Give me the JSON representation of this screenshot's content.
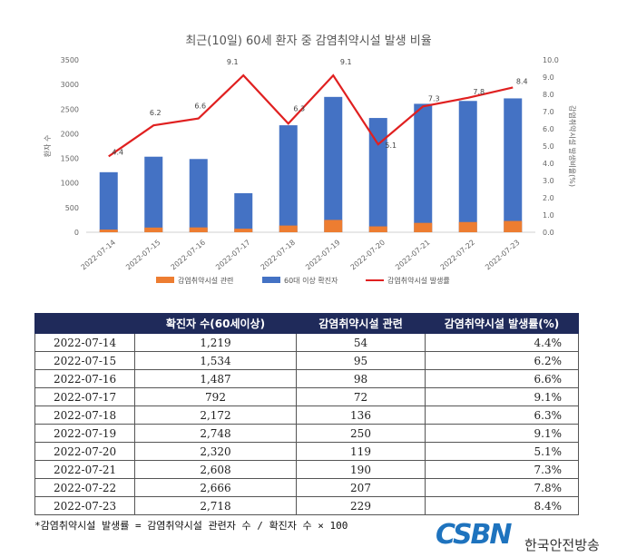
{
  "chart_data": {
    "type": "bar",
    "title": "최근(10일) 60세 환자 중 감염취약시설 발생 비율",
    "ylabel": "환자 수",
    "y2label": "감염취약시설 발생비율(%)",
    "ylim": [
      0,
      3500
    ],
    "y2lim": [
      0,
      10
    ],
    "yticks": [
      "0",
      "500",
      "1000",
      "1500",
      "2000",
      "2500",
      "3000",
      "3500"
    ],
    "y2ticks": [
      "0.0",
      "1.0",
      "2.0",
      "3.0",
      "4.0",
      "5.0",
      "6.0",
      "7.0",
      "8.0",
      "9.0",
      "10.0"
    ],
    "categories": [
      "2022-07-14",
      "2022-07-15",
      "2022-07-16",
      "2022-07-17",
      "2022-07-18",
      "2022-07-19",
      "2022-07-20",
      "2022-07-21",
      "2022-07-22",
      "2022-07-23"
    ],
    "series": [
      {
        "name": "감염취약시설 관련",
        "kind": "bar",
        "color": "#ed7d31",
        "values": [
          54,
          95,
          98,
          72,
          136,
          250,
          119,
          190,
          207,
          229
        ]
      },
      {
        "name": "60대 이상 확진자",
        "kind": "bar",
        "color": "#4472c4",
        "values": [
          1219,
          1534,
          1487,
          792,
          2172,
          2748,
          2320,
          2608,
          2666,
          2718
        ]
      },
      {
        "name": "감염취약시설 발생률",
        "kind": "line",
        "axis": "right",
        "color": "#e02020",
        "values": [
          4.4,
          6.2,
          6.6,
          9.1,
          6.3,
          9.1,
          5.1,
          7.3,
          7.8,
          8.4
        ],
        "labels": [
          "4.4",
          "6.2",
          "6.6",
          "9.1",
          "6.3",
          "9.1",
          "5.1",
          "7.3",
          "7.8",
          "8.4"
        ]
      }
    ],
    "legend": "bottom",
    "grid": false
  },
  "table": {
    "headers": [
      "",
      "확진자 수(60세이상)",
      "감염취약시설 관련",
      "감염취약시설 발생률(%)"
    ],
    "rows": [
      [
        "2022-07-14",
        "1,219",
        "54",
        "4.4%"
      ],
      [
        "2022-07-15",
        "1,534",
        "95",
        "6.2%"
      ],
      [
        "2022-07-16",
        "1,487",
        "98",
        "6.6%"
      ],
      [
        "2022-07-17",
        "792",
        "72",
        "9.1%"
      ],
      [
        "2022-07-18",
        "2,172",
        "136",
        "6.3%"
      ],
      [
        "2022-07-19",
        "2,748",
        "250",
        "9.1%"
      ],
      [
        "2022-07-20",
        "2,320",
        "119",
        "5.1%"
      ],
      [
        "2022-07-21",
        "2,608",
        "190",
        "7.3%"
      ],
      [
        "2022-07-22",
        "2,666",
        "207",
        "7.8%"
      ],
      [
        "2022-07-23",
        "2,718",
        "229",
        "8.4%"
      ]
    ]
  },
  "footnote": "*감염취약시설 발생률 = 감염취약시설 관련자 수 / 확진자 수 × 100",
  "logo": {
    "mark": "CSBN",
    "text": "한국안전방송"
  }
}
